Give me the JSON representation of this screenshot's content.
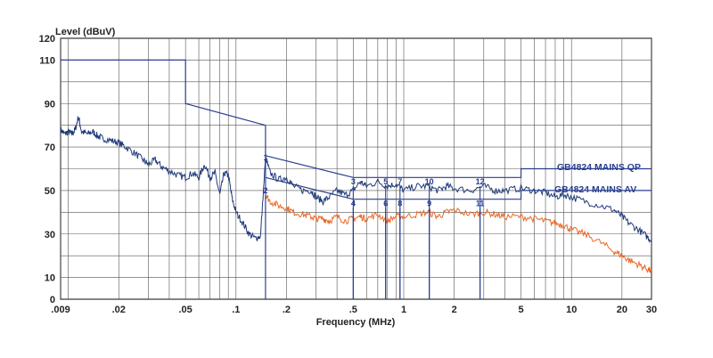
{
  "chart_data": {
    "type": "line",
    "ylabel": "Level (dBuV)",
    "xlabel": "Frequency (MHz)",
    "xscale": "log",
    "xlim": [
      0.009,
      30
    ],
    "ylim": [
      0,
      120
    ],
    "grid": true,
    "x_ticks": [
      {
        "value": 0.009,
        "label": ".009"
      },
      {
        "value": 0.02,
        "label": ".02"
      },
      {
        "value": 0.05,
        "label": ".05"
      },
      {
        "value": 0.1,
        "label": ".1"
      },
      {
        "value": 0.2,
        "label": ".2"
      },
      {
        "value": 0.5,
        "label": ".5"
      },
      {
        "value": 1,
        "label": "1"
      },
      {
        "value": 2,
        "label": "2"
      },
      {
        "value": 5,
        "label": "5"
      },
      {
        "value": 10,
        "label": "10"
      },
      {
        "value": 20,
        "label": "20"
      },
      {
        "value": 30,
        "label": "30"
      }
    ],
    "y_ticks": [
      {
        "value": 0,
        "label": "0"
      },
      {
        "value": 10,
        "label": "10"
      },
      {
        "value": 30,
        "label": "30"
      },
      {
        "value": 50,
        "label": "50"
      },
      {
        "value": 70,
        "label": "70"
      },
      {
        "value": 90,
        "label": "90"
      },
      {
        "value": 110,
        "label": "110"
      },
      {
        "value": 120,
        "label": "120"
      }
    ],
    "limit_lines": [
      {
        "name": "GB4824 MAINS QP",
        "color": "#2a3f8f",
        "points": [
          [
            0.009,
            110
          ],
          [
            0.05,
            110
          ],
          [
            0.05,
            90
          ],
          [
            0.15,
            80
          ],
          [
            0.15,
            66
          ],
          [
            0.5,
            56
          ],
          [
            5,
            56
          ],
          [
            5,
            60
          ],
          [
            30,
            60
          ]
        ]
      },
      {
        "name": "GB4824  MAINS AV",
        "color": "#2a3f8f",
        "points": [
          [
            0.15,
            56
          ],
          [
            0.5,
            46
          ],
          [
            5,
            46
          ],
          [
            5,
            50
          ],
          [
            30,
            50
          ]
        ]
      }
    ],
    "series": [
      {
        "color": "#1f3a7a",
        "x": [
          0.009,
          0.0095,
          0.01,
          0.0105,
          0.011,
          0.0115,
          0.012,
          0.013,
          0.014,
          0.015,
          0.016,
          0.018,
          0.02,
          0.022,
          0.025,
          0.028,
          0.03,
          0.033,
          0.036,
          0.04,
          0.045,
          0.05,
          0.055,
          0.06,
          0.065,
          0.07,
          0.075,
          0.08,
          0.085,
          0.09,
          0.095,
          0.1,
          0.11,
          0.12,
          0.13,
          0.14,
          0.15,
          0.16,
          0.18,
          0.2,
          0.22,
          0.25,
          0.28,
          0.3,
          0.33,
          0.36,
          0.4,
          0.45,
          0.5,
          0.55,
          0.6,
          0.7,
          0.8,
          0.9,
          1.0,
          1.2,
          1.4,
          1.6,
          1.8,
          2,
          2.5,
          3,
          3.5,
          4,
          5,
          6,
          7,
          8,
          9,
          10,
          12,
          15,
          18,
          20,
          22,
          25,
          28,
          30
        ],
        "y": [
          78,
          76,
          77,
          76,
          78,
          84,
          77,
          76,
          77,
          75,
          74,
          73,
          72,
          70,
          67,
          64,
          62,
          64,
          61,
          59,
          57,
          56,
          58,
          56,
          62,
          56,
          58,
          48,
          58,
          57,
          46,
          40,
          35,
          30,
          28,
          29,
          65,
          58,
          55,
          56,
          52,
          50,
          50,
          47,
          45,
          47,
          50,
          48,
          50,
          54,
          52,
          54,
          52,
          53,
          50,
          52,
          52,
          50,
          52,
          51,
          50,
          52,
          50,
          50,
          51,
          50,
          49,
          47,
          48,
          47,
          45,
          43,
          41,
          38,
          35,
          32,
          29,
          27
        ]
      },
      {
        "color": "#e86a2a",
        "x": [
          0.15,
          0.16,
          0.18,
          0.2,
          0.22,
          0.25,
          0.28,
          0.3,
          0.33,
          0.36,
          0.4,
          0.45,
          0.5,
          0.55,
          0.6,
          0.7,
          0.8,
          0.9,
          1.0,
          1.2,
          1.4,
          1.6,
          1.8,
          2,
          2.5,
          3,
          3.5,
          4,
          5,
          6,
          7,
          8,
          9,
          10,
          12,
          15,
          18,
          20,
          22,
          25,
          28,
          30
        ],
        "y": [
          48,
          45,
          43,
          42,
          40,
          39,
          38,
          37,
          37,
          36,
          38,
          36,
          37,
          38,
          37,
          39,
          36,
          38,
          38,
          39,
          40,
          38,
          40,
          41,
          39,
          40,
          39,
          38,
          38,
          37,
          36,
          35,
          34,
          32,
          30,
          26,
          22,
          20,
          18,
          16,
          14,
          13
        ]
      }
    ],
    "markers": [
      {
        "label": "1",
        "x": 0.15,
        "y": 63
      },
      {
        "label": "2",
        "x": 0.15,
        "y": 48
      },
      {
        "label": "3",
        "x": 0.5,
        "y": 52
      },
      {
        "label": "4",
        "x": 0.5,
        "y": 42
      },
      {
        "label": "5",
        "x": 0.78,
        "y": 52
      },
      {
        "label": "6",
        "x": 0.78,
        "y": 42
      },
      {
        "label": "7",
        "x": 0.95,
        "y": 52
      },
      {
        "label": "8",
        "x": 0.95,
        "y": 42
      },
      {
        "label": "9",
        "x": 1.42,
        "y": 42
      },
      {
        "label": "10",
        "x": 1.42,
        "y": 52
      },
      {
        "label": "11",
        "x": 2.85,
        "y": 42
      },
      {
        "label": "12",
        "x": 2.85,
        "y": 52
      }
    ],
    "legend": [
      {
        "label": "GB4824 MAINS QP"
      },
      {
        "label": "GB4824  MAINS AV"
      }
    ]
  }
}
